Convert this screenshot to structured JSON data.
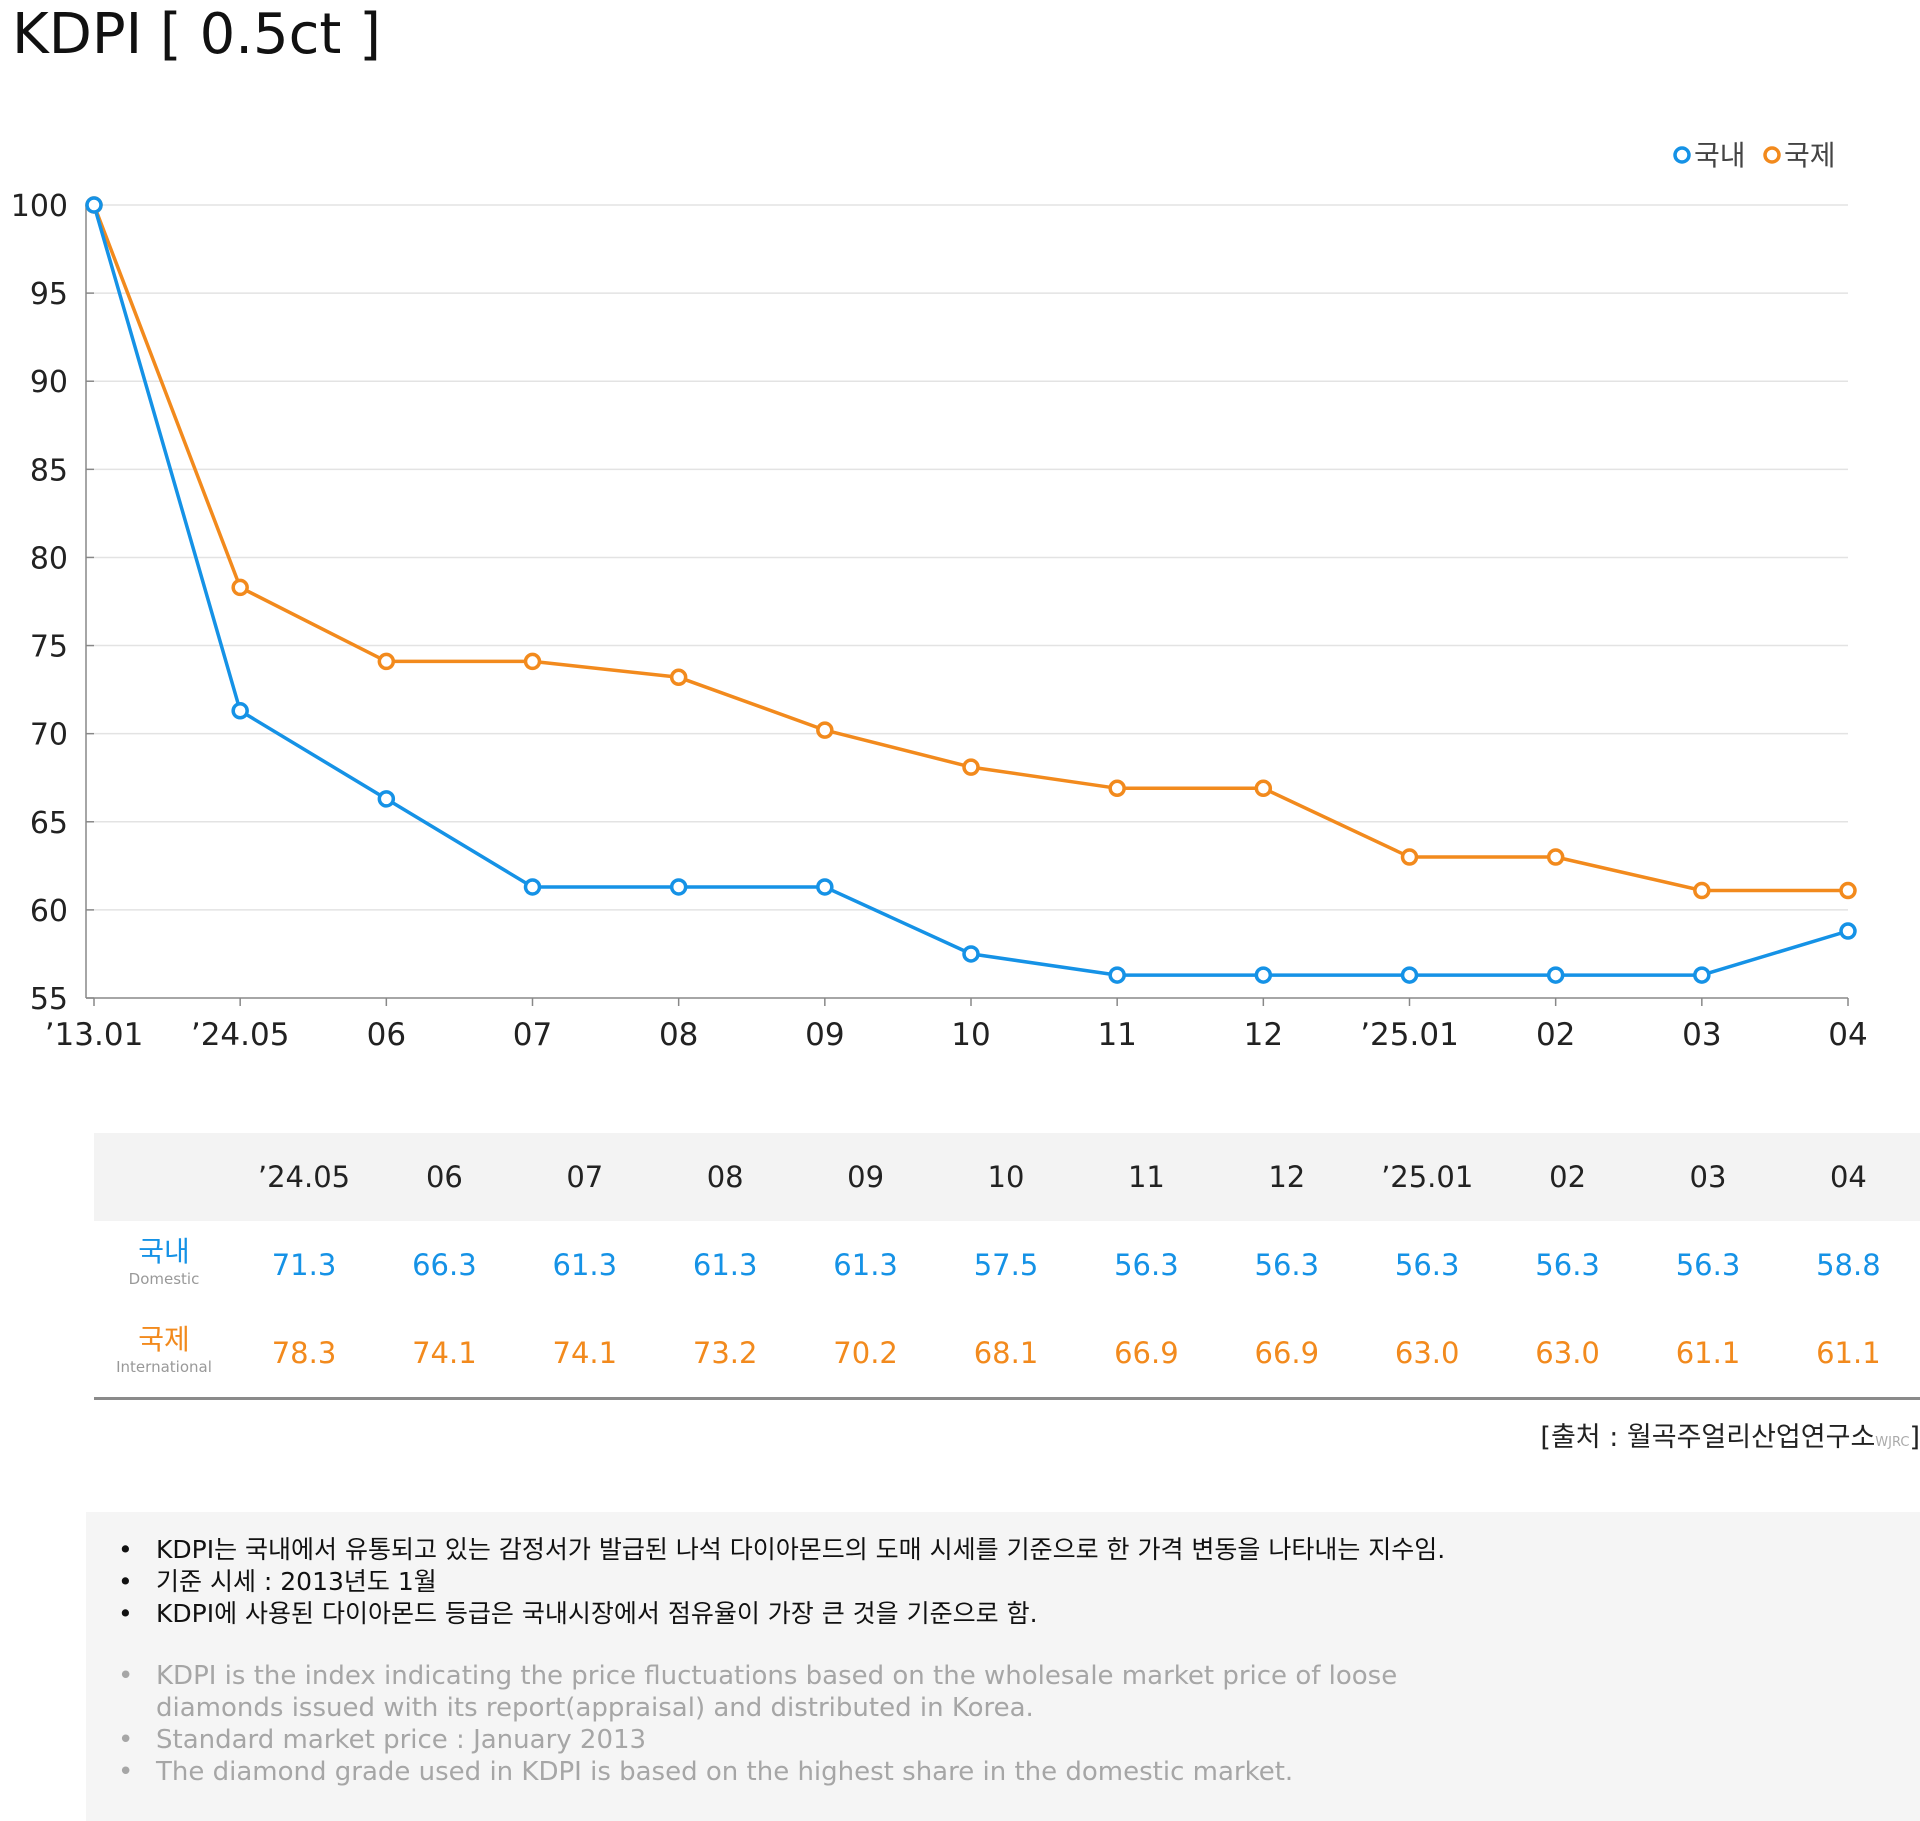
{
  "title": "KDPI [ 0.5ct ]",
  "chart_data": {
    "type": "line",
    "categories": [
      "’13.01",
      "’24.05",
      "06",
      "07",
      "08",
      "09",
      "10",
      "11",
      "12",
      "’25.01",
      "02",
      "03",
      "04"
    ],
    "series": [
      {
        "name": "국내",
        "color": "#1592e6",
        "values": [
          100,
          71.3,
          66.3,
          61.3,
          61.3,
          61.3,
          57.5,
          56.3,
          56.3,
          56.3,
          56.3,
          56.3,
          58.8
        ]
      },
      {
        "name": "국제",
        "color": "#f28a1d",
        "values": [
          100,
          78.3,
          74.1,
          74.1,
          73.2,
          70.2,
          68.1,
          66.9,
          66.9,
          63.0,
          63.0,
          61.1,
          61.1
        ]
      }
    ],
    "ylim": [
      55,
      100
    ],
    "yticks": [
      55,
      60,
      65,
      70,
      75,
      80,
      85,
      90,
      95,
      100
    ],
    "grid": true,
    "legend": "top-right"
  },
  "table": {
    "headers": [
      "’24.05",
      "06",
      "07",
      "08",
      "09",
      "10",
      "11",
      "12",
      "’25.01",
      "02",
      "03",
      "04"
    ],
    "rows": [
      {
        "label": "국내",
        "sublabel": "Domestic",
        "values": [
          "71.3",
          "66.3",
          "61.3",
          "61.3",
          "61.3",
          "57.5",
          "56.3",
          "56.3",
          "56.3",
          "56.3",
          "56.3",
          "58.8"
        ]
      },
      {
        "label": "국제",
        "sublabel": "International",
        "values": [
          "78.3",
          "74.1",
          "74.1",
          "73.2",
          "70.2",
          "68.1",
          "66.9",
          "66.9",
          "63.0",
          "63.0",
          "61.1",
          "61.1"
        ]
      }
    ]
  },
  "source": {
    "text": "[출처 : 월곡주얼리산업연구소",
    "small": "WJRC",
    "close": "]"
  },
  "notes_ko": [
    "KDPI는 국내에서 유통되고 있는 감정서가 발급된 나석 다이아몬드의 도매 시세를 기준으로 한 가격 변동을 나타내는 지수임.",
    "기준 시세 : 2013년도 1월",
    "KDPI에 사용된 다이아몬드 등급은 국내시장에서 점유율이 가장 큰 것을 기준으로 함."
  ],
  "notes_en": [
    "KDPI is the index indicating the price fluctuations based on the wholesale market price of loose diamonds issued with its report(appraisal) and distributed in Korea.",
    "Standard market price : January 2013",
    "The diamond grade used in KDPI is based on the highest share in the domestic market."
  ]
}
